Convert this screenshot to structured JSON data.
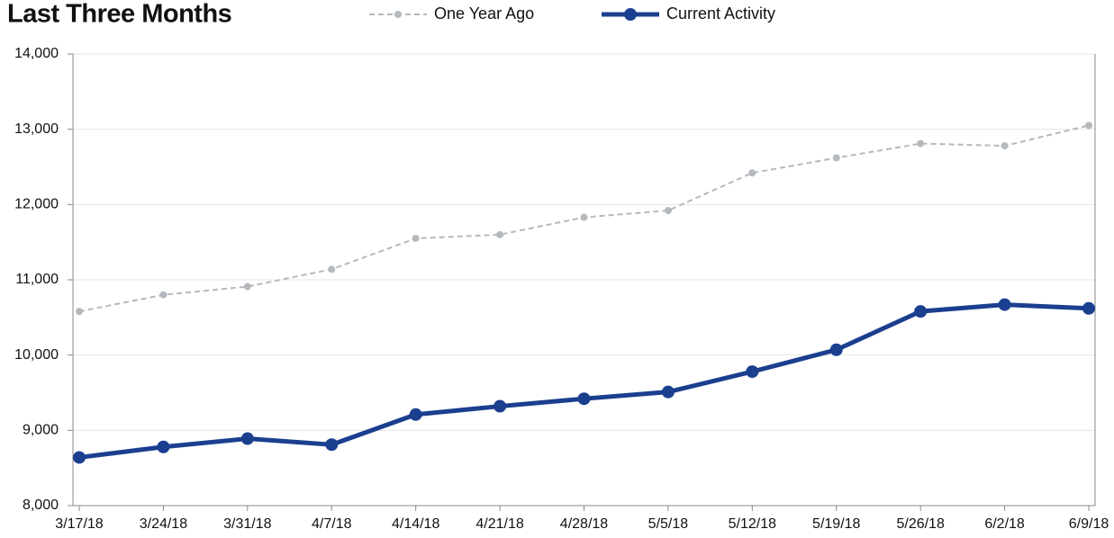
{
  "chart_data": {
    "type": "line",
    "title": "Last Three Months",
    "categories": [
      "3/17/18",
      "3/24/18",
      "3/31/18",
      "4/7/18",
      "4/14/18",
      "4/21/18",
      "4/28/18",
      "5/5/18",
      "5/12/18",
      "5/19/18",
      "5/26/18",
      "6/2/18",
      "6/9/18"
    ],
    "series": [
      {
        "name": "One Year Ago",
        "color": "#b4b9be",
        "dashed": true,
        "values": [
          10580,
          10800,
          10910,
          11140,
          11550,
          11600,
          11830,
          11920,
          12420,
          12620,
          12810,
          12780,
          13050
        ]
      },
      {
        "name": "Current Activity",
        "color": "#1b3f8f",
        "dashed": false,
        "values": [
          8640,
          8780,
          8890,
          8810,
          9210,
          9320,
          9420,
          9510,
          9780,
          10070,
          10580,
          10670,
          10620
        ]
      }
    ],
    "ylim": [
      8000,
      14000
    ],
    "yticks": [
      {
        "value": 8000,
        "label": "8,000"
      },
      {
        "value": 9000,
        "label": "9,000"
      },
      {
        "value": 10000,
        "label": "10,000"
      },
      {
        "value": 11000,
        "label": "11,000"
      },
      {
        "value": 12000,
        "label": "12,000"
      },
      {
        "value": 13000,
        "label": "13,000"
      },
      {
        "value": 14000,
        "label": "14,000"
      }
    ],
    "grid": true,
    "legend": "top"
  }
}
